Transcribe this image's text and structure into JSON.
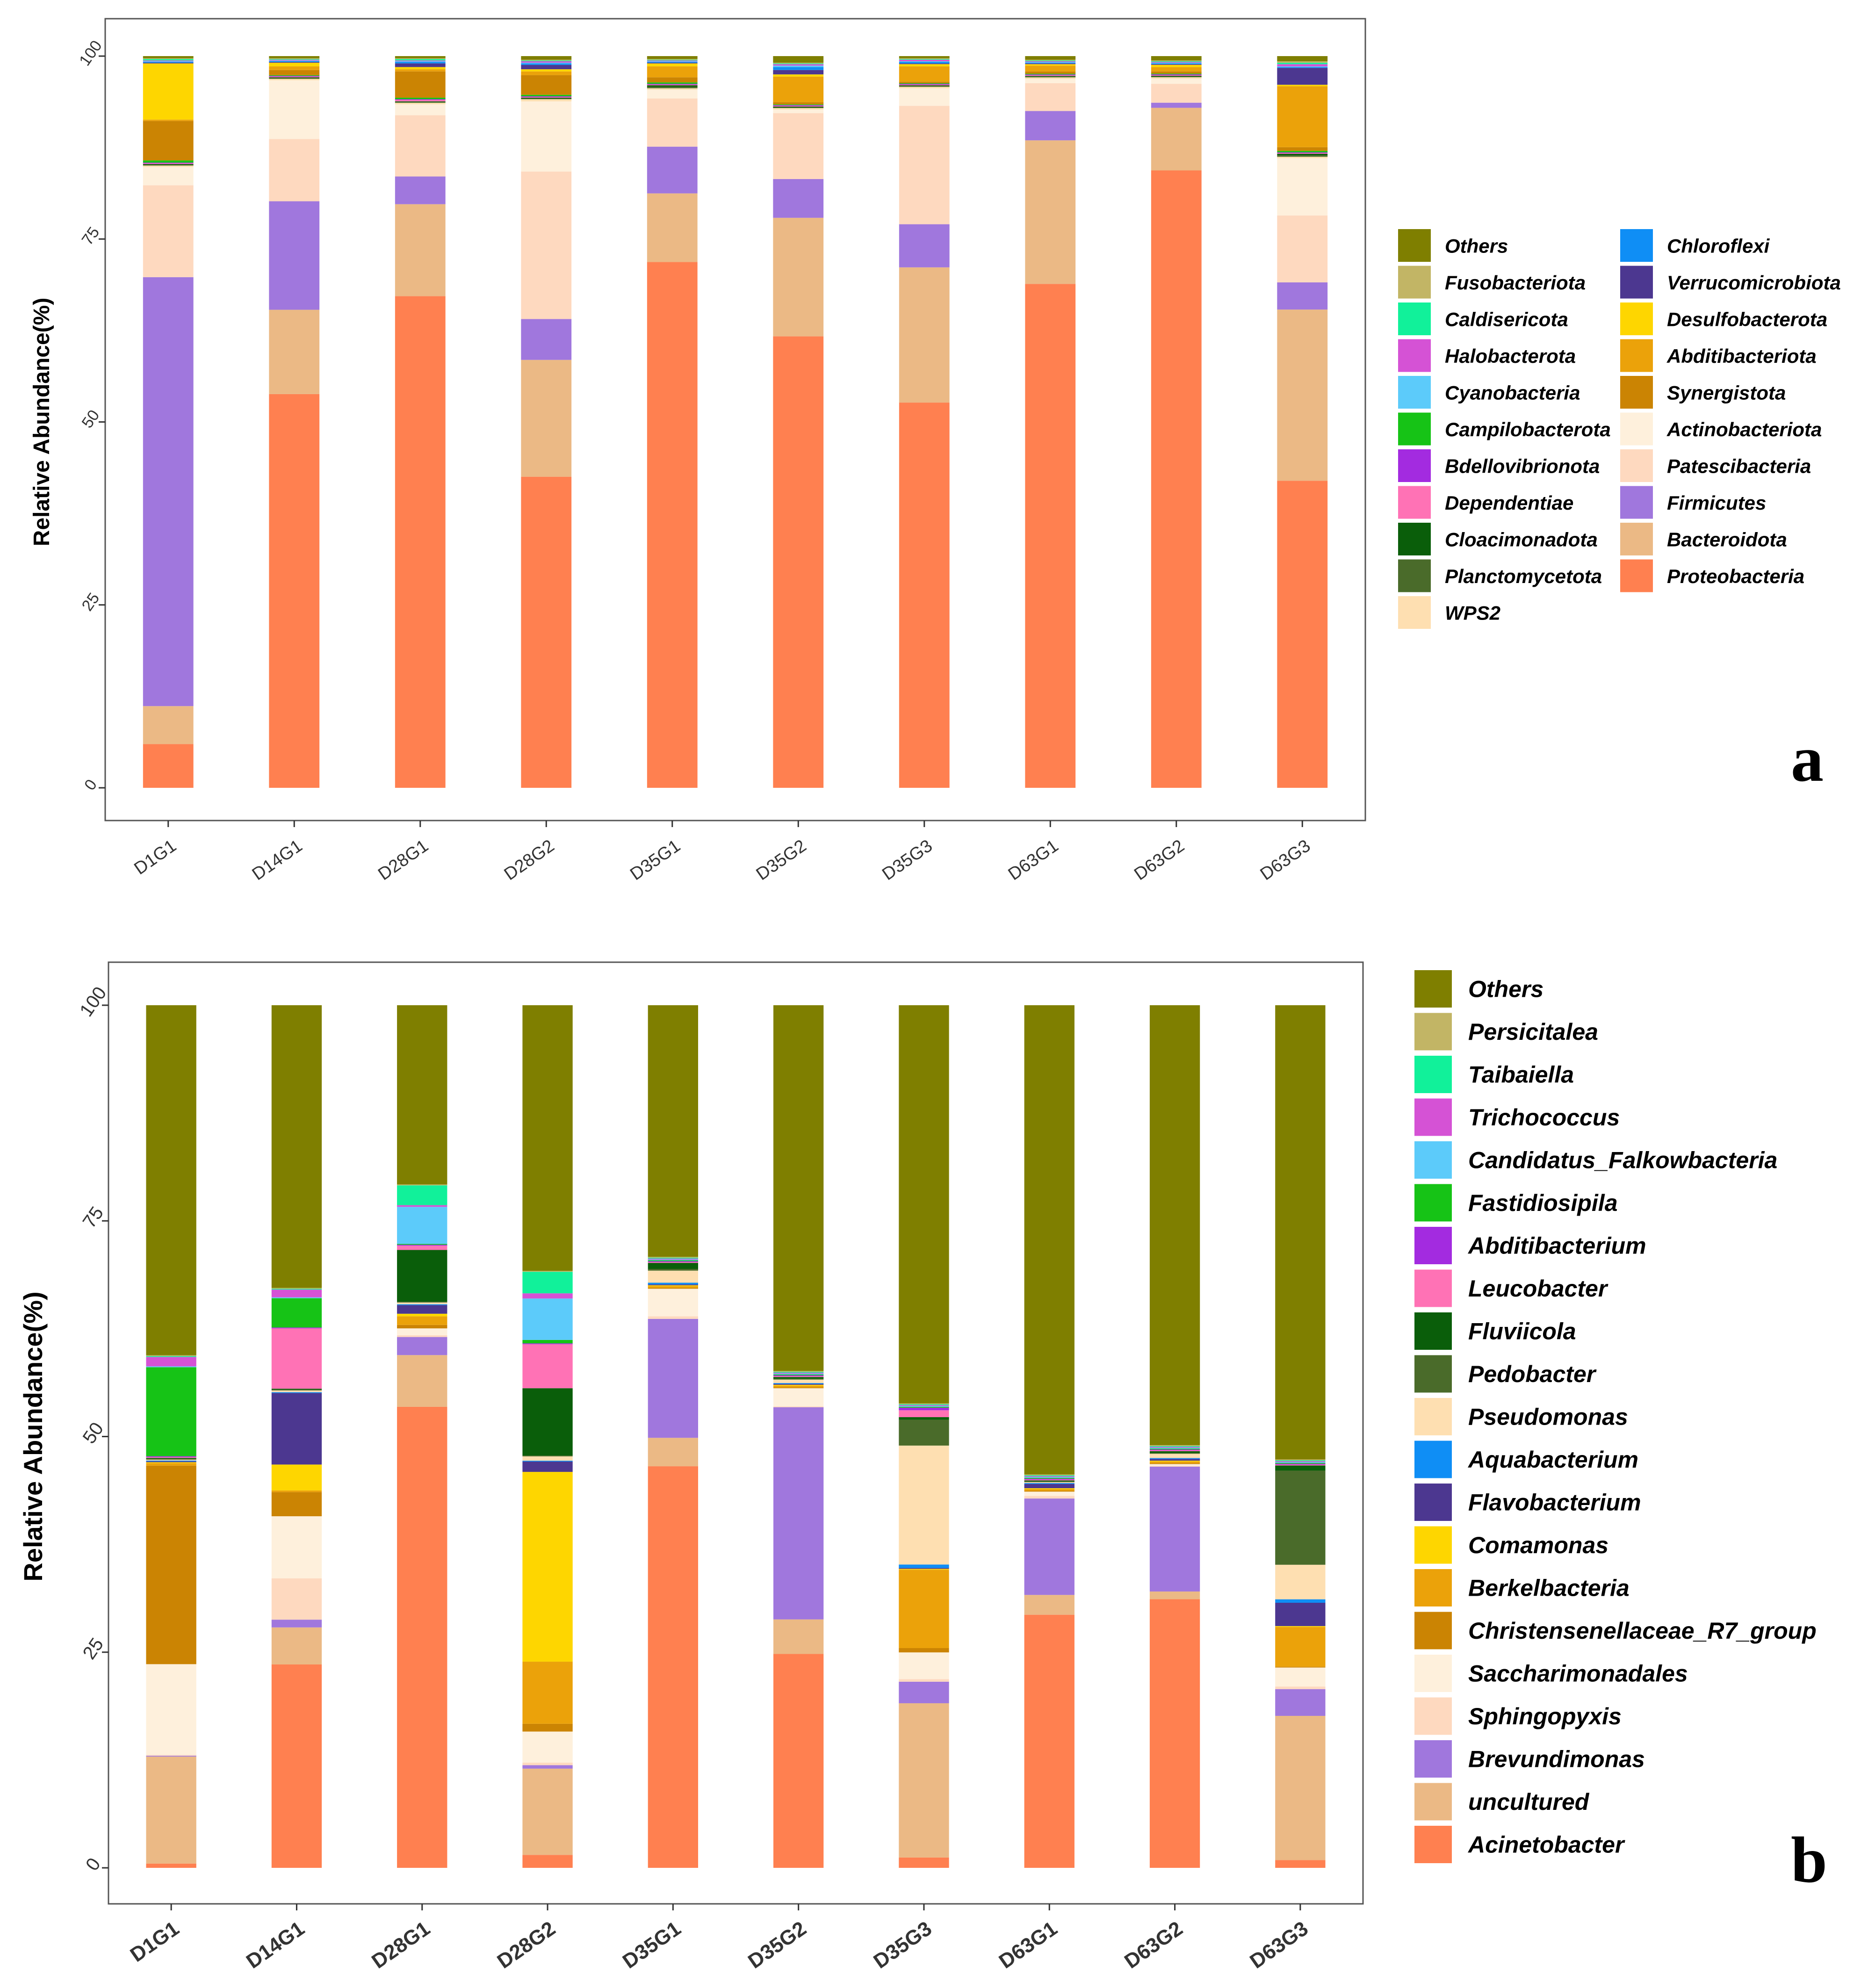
{
  "chart_data": [
    {
      "type": "bar",
      "stacked": true,
      "panel_label": "a",
      "ylabel": "Relative Abundance(%)",
      "xlabel": "",
      "ylim": [
        0,
        100
      ],
      "yticks": [
        "0",
        "25",
        "50",
        "75",
        "100"
      ],
      "categories": [
        "D1G1",
        "D14G1",
        "D28G1",
        "D28G2",
        "D35G1",
        "D35G2",
        "D35G3",
        "D63G1",
        "D63G2",
        "D63G3"
      ],
      "legend": [
        "Others",
        "Chloroflexi",
        "Fusobacteriota",
        "Verrucomicrobiota",
        "Caldisericota",
        "Desulfobacterota",
        "Halobacterota",
        "Abditibacteriota",
        "Cyanobacteria",
        "Synergistota",
        "Campilobacterota",
        "Actinobacteriota",
        "Bdellovibrionota",
        "Patescibacteria",
        "Dependentiae",
        "Firmicutes",
        "Cloacimonadota",
        "Bacteroidota",
        "Planctomycetota",
        "Proteobacteria",
        "WPS2"
      ],
      "series": [
        {
          "name": "Proteobacteria",
          "color": "#FF8050",
          "values": [
            6,
            53.7,
            67.4,
            42.6,
            72,
            61.7,
            52.7,
            68.8,
            84.8,
            41.8
          ]
        },
        {
          "name": "Bacteroidota",
          "color": "#EBB985",
          "values": [
            5.2,
            11.5,
            12.6,
            16,
            9.4,
            16.2,
            18.5,
            19.6,
            8.6,
            23.3
          ]
        },
        {
          "name": "Firmicutes",
          "color": "#A077DD",
          "values": [
            58.8,
            14.8,
            3.8,
            5.6,
            6.4,
            5.3,
            5.9,
            4,
            0.7,
            3.7
          ]
        },
        {
          "name": "Patescibacteria",
          "color": "#FED9BF",
          "values": [
            12.6,
            8.5,
            8.4,
            20.2,
            6.6,
            9,
            16.2,
            3.8,
            2.6,
            9.1
          ]
        },
        {
          "name": "Actinobacteriota",
          "color": "#FEF0DC",
          "values": [
            2.5,
            8,
            1.5,
            9.6,
            1.2,
            0.5,
            2.4,
            0.6,
            0.7,
            7.8
          ]
        },
        {
          "name": "WPS2",
          "color": "#FEDFB1",
          "values": [
            0.2,
            0.2,
            0.2,
            0.3,
            0.2,
            0.2,
            0.2,
            0.2,
            0.2,
            0.2
          ]
        },
        {
          "name": "Planctomycetota",
          "color": "#4A6B2A",
          "values": [
            0.1,
            0.1,
            0.1,
            0.1,
            0.2,
            0.1,
            0.1,
            0.1,
            0.1,
            0.2
          ]
        },
        {
          "name": "Cloacimonadota",
          "color": "#0A5E0A",
          "values": [
            0.1,
            0.1,
            0.1,
            0.1,
            0.2,
            0.1,
            0.1,
            0.1,
            0.1,
            0.2
          ]
        },
        {
          "name": "Dependentiae",
          "color": "#FF72B5",
          "values": [
            0.1,
            0.1,
            0.2,
            0.1,
            0.1,
            0.1,
            0.1,
            0.1,
            0.1,
            0.1
          ]
        },
        {
          "name": "Bdellovibrionota",
          "color": "#A32BE0",
          "values": [
            0.1,
            0.1,
            0.1,
            0.1,
            0.1,
            0.1,
            0.1,
            0.1,
            0.1,
            0.1
          ]
        },
        {
          "name": "Campilobacterota",
          "color": "#16C316",
          "values": [
            0.3,
            0.1,
            0.2,
            0.2,
            0.2,
            0.1,
            0.1,
            0.1,
            0.1,
            0.2
          ]
        },
        {
          "name": "Synergistota",
          "color": "#CB8403",
          "values": [
            5.4,
            0.7,
            3.6,
            2.7,
            0.7,
            0.3,
            0.2,
            0.3,
            0.3,
            0.5
          ]
        },
        {
          "name": "Abditibacteriota",
          "color": "#EBA20A",
          "values": [
            0.2,
            0.5,
            0.3,
            0.5,
            1.5,
            3.5,
            2.1,
            0.8,
            0.6,
            8.3
          ]
        },
        {
          "name": "Desulfobacterota",
          "color": "#FED600",
          "values": [
            7.7,
            0.5,
            0.3,
            0.3,
            0.4,
            0.3,
            0.3,
            0.2,
            0.3,
            0.2
          ]
        },
        {
          "name": "Verrucomicrobiota",
          "color": "#4C3790",
          "values": [
            0.1,
            0.1,
            0.5,
            0.6,
            0.1,
            0.6,
            0.1,
            0.1,
            0.1,
            2.3
          ]
        },
        {
          "name": "Chloroflexi",
          "color": "#0F8EF5",
          "values": [
            0.1,
            0.1,
            0.2,
            0.2,
            0.1,
            0.4,
            0.2,
            0.1,
            0.1,
            0.1
          ]
        },
        {
          "name": "Cyanobacteria",
          "color": "#5CCBFA",
          "values": [
            0.1,
            0.1,
            0.1,
            0.1,
            0.1,
            0.2,
            0.1,
            0.1,
            0.1,
            0.1
          ]
        },
        {
          "name": "Halobacterota",
          "color": "#D552D5",
          "values": [
            0.1,
            0.1,
            0.1,
            0.2,
            0.1,
            0.2,
            0.2,
            0.1,
            0.1,
            0.3
          ]
        },
        {
          "name": "Caldisericota",
          "color": "#11F19A",
          "values": [
            0.2,
            0.1,
            0.2,
            0.1,
            0.1,
            0.1,
            0.1,
            0.1,
            0.1,
            0.2
          ]
        },
        {
          "name": "Fusobacteriota",
          "color": "#C2B565",
          "values": [
            0.1,
            0.1,
            0.1,
            0.1,
            0.1,
            0.1,
            0.1,
            0.1,
            0.1,
            0.2
          ]
        },
        {
          "name": "Others",
          "color": "#7F7F00",
          "values": [
            0.3,
            0.3,
            0.3,
            0.5,
            0.4,
            0.9,
            0.3,
            0.5,
            0.6,
            0.7
          ]
        }
      ]
    },
    {
      "type": "bar",
      "stacked": true,
      "panel_label": "b",
      "ylabel": "Relative Abundance(%)",
      "xlabel": "",
      "ylim": [
        0,
        100
      ],
      "yticks": [
        "0",
        "25",
        "50",
        "75",
        "100"
      ],
      "categories": [
        "D1G1",
        "D14G1",
        "D28G1",
        "D28G2",
        "D35G1",
        "D35G2",
        "D35G3",
        "D63G1",
        "D63G2",
        "D63G3"
      ],
      "legend": [
        "Others",
        "Persicitalea",
        "Taibaiella",
        "Trichococcus",
        "Candidatus_Falkowbacteria",
        "Fastidiosipila",
        "Abditibacterium",
        "Leucobacter",
        "Fluviicola",
        "Pedobacter",
        "Pseudomonas",
        "Aquabacterium",
        "Flavobacterium",
        "Comamonas",
        "Berkelbacteria",
        "Christensenellaceae_R7_group",
        "Saccharimonadales",
        "Sphingopyxis",
        "Brevundimonas",
        "uncultured",
        "Acinetobacter"
      ],
      "series": [
        {
          "name": "Acinetobacter",
          "color": "#FF8050",
          "values": [
            0.5,
            23.6,
            53.5,
            1.5,
            46.6,
            24.8,
            1.2,
            29.4,
            31.2,
            0.9
          ]
        },
        {
          "name": "uncultured",
          "color": "#EBB985",
          "values": [
            12.5,
            4.3,
            6,
            10,
            3.3,
            4,
            17.9,
            2.3,
            0.9,
            16.7
          ]
        },
        {
          "name": "Brevundimonas",
          "color": "#A077DD",
          "values": [
            0.1,
            0.9,
            2.1,
            0.4,
            13.8,
            24.6,
            2.5,
            11.2,
            14.5,
            3.1
          ]
        },
        {
          "name": "Sphingopyxis",
          "color": "#FED9BF",
          "values": [
            0.1,
            4.8,
            0.2,
            0.3,
            0.3,
            0.1,
            0.3,
            0.3,
            0.1,
            0.3
          ]
        },
        {
          "name": "Saccharimonadales",
          "color": "#FEF0DC",
          "values": [
            10.6,
            7.2,
            0.8,
            3.6,
            3.2,
            2.1,
            3.1,
            0.5,
            0.2,
            2.2
          ]
        },
        {
          "name": "Christensenellaceae_R7_group",
          "color": "#CB8403",
          "values": [
            23.2,
            2.8,
            0.4,
            0.9,
            0.1,
            0.1,
            0.5,
            0.1,
            0.1,
            0.1
          ]
        },
        {
          "name": "Berkelbacteria",
          "color": "#EBA20A",
          "values": [
            0.3,
            0.2,
            1,
            7.2,
            0.2,
            0.2,
            9.1,
            0.2,
            0.2,
            4.6
          ]
        },
        {
          "name": "Comamonas",
          "color": "#FED600",
          "values": [
            0.1,
            3,
            0.3,
            22,
            0.1,
            0.1,
            0.1,
            0.1,
            0.1,
            0.1
          ]
        },
        {
          "name": "Flavobacterium",
          "color": "#4C3790",
          "values": [
            0.1,
            8.3,
            1,
            1.2,
            0.1,
            0.1,
            0.1,
            0.5,
            0.2,
            2.7
          ]
        },
        {
          "name": "Aquabacterium",
          "color": "#0F8EF5",
          "values": [
            0.1,
            0.1,
            0.1,
            0.1,
            0.2,
            0.1,
            0.4,
            0.1,
            0.1,
            0.4
          ]
        },
        {
          "name": "Pseudomonas",
          "color": "#FEDFB1",
          "values": [
            0.1,
            0.2,
            0.2,
            0.5,
            1.4,
            0.4,
            13.8,
            0.1,
            0.5,
            4
          ]
        },
        {
          "name": "Pedobacter",
          "color": "#4A6B2A",
          "values": [
            0.1,
            0.1,
            0.1,
            0.1,
            0.2,
            0.1,
            3,
            0.1,
            0.1,
            10.9
          ]
        },
        {
          "name": "Fluviicola",
          "color": "#0A5E0A",
          "values": [
            0.1,
            0.1,
            6,
            7.8,
            0.7,
            0.2,
            0.3,
            0.1,
            0.2,
            0.6
          ]
        },
        {
          "name": "Leucobacter",
          "color": "#FF72B5",
          "values": [
            0.1,
            7,
            0.5,
            5.1,
            0.1,
            0.1,
            0.8,
            0.1,
            0.1,
            0.1
          ]
        },
        {
          "name": "Abditibacterium",
          "color": "#A32BE0",
          "values": [
            0.1,
            0.1,
            0.1,
            0.1,
            0.1,
            0.1,
            0.3,
            0.1,
            0.1,
            0.1
          ]
        },
        {
          "name": "Fastidiosipila",
          "color": "#16C316",
          "values": [
            10.4,
            3.4,
            0.1,
            0.4,
            0.1,
            0.1,
            0.1,
            0.1,
            0.1,
            0.1
          ]
        },
        {
          "name": "Candidatus_Falkowbacteria",
          "color": "#5CCBFA",
          "values": [
            0.1,
            0.1,
            4.3,
            4.8,
            0.1,
            0.1,
            0.1,
            0.1,
            0.1,
            0.1
          ]
        },
        {
          "name": "Trichococcus",
          "color": "#D552D5",
          "values": [
            1.1,
            0.9,
            0.2,
            0.6,
            0.1,
            0.1,
            0.1,
            0.1,
            0.1,
            0.1
          ]
        },
        {
          "name": "Taibaiella",
          "color": "#11F19A",
          "values": [
            0.1,
            0.1,
            2.3,
            2.5,
            0.1,
            0.1,
            0.1,
            0.1,
            0.1,
            0.1
          ]
        },
        {
          "name": "Persicitalea",
          "color": "#C2B565",
          "values": [
            0.1,
            0.1,
            0.1,
            0.1,
            0.1,
            0.1,
            0.1,
            0.1,
            0.1,
            0.1
          ]
        },
        {
          "name": "Others",
          "color": "#7F7F00",
          "values": [
            40.9,
            32.8,
            20.8,
            30.8,
            29.2,
            42.4,
            46.2,
            54.5,
            51.1,
            52.6
          ]
        }
      ]
    }
  ]
}
